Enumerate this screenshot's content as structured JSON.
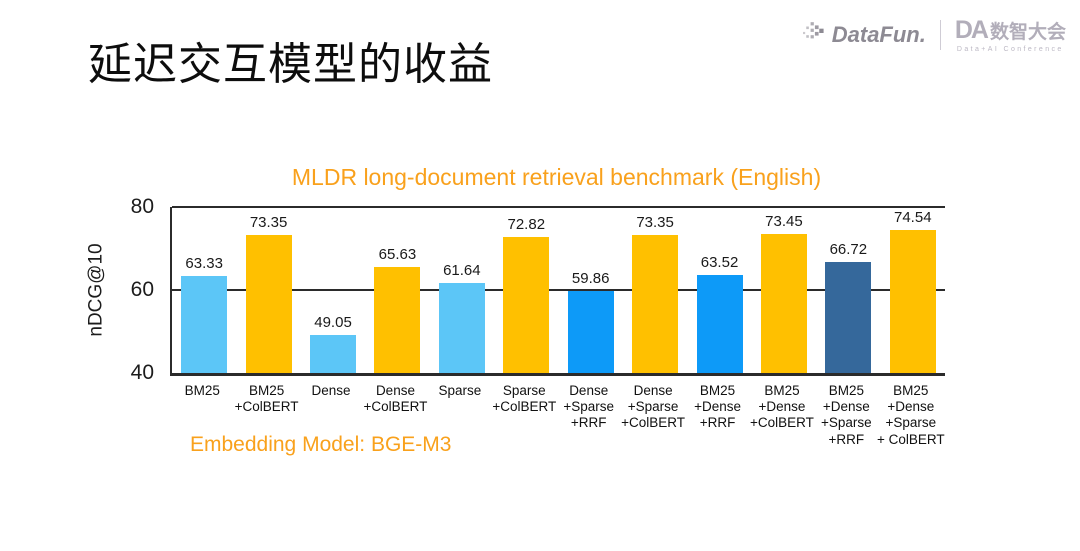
{
  "slide": {
    "title": "延迟交互模型的收益"
  },
  "branding": {
    "datafun": {
      "wordmark": "DataFun."
    },
    "conference": {
      "mark": "DA",
      "name_cn": "数智大会",
      "subtitle": "Data+AI Conference"
    }
  },
  "colors": {
    "accent_orange": "#f9a11c",
    "bar_light_blue": "#5CC6F7",
    "bar_amber": "#FFC000",
    "bar_azure": "#0D9AF8",
    "bar_steel_blue": "#35689B",
    "axis": "#2b2b2b",
    "logo_gray": "#8d8a93"
  },
  "chart_data": {
    "type": "bar",
    "title": "MLDR long-document retrieval benchmark (English)",
    "annotation": "Embedding Model: BGE-M3",
    "xlabel": "",
    "ylabel": "nDCG@10",
    "ylim": [
      40,
      80
    ],
    "yticks": [
      40,
      60,
      80
    ],
    "grid": "horizontal",
    "legend_position": "none",
    "categories": [
      "BM25",
      "BM25\n+ColBERT",
      "Dense",
      "Dense\n+ColBERT",
      "Sparse",
      "Sparse\n+ColBERT",
      "Dense\n+Sparse\n+RRF",
      "Dense\n+Sparse\n+ColBERT",
      "BM25\n+Dense\n+RRF",
      "BM25\n+Dense\n+ColBERT",
      "BM25\n+Dense\n+Sparse\n+RRF",
      "BM25\n+Dense\n+Sparse\n+ ColBERT"
    ],
    "values": [
      63.33,
      73.35,
      49.05,
      65.63,
      61.64,
      72.82,
      59.86,
      73.35,
      63.52,
      73.45,
      66.72,
      74.54
    ],
    "bar_colors": [
      "#5CC6F7",
      "#FFC000",
      "#5CC6F7",
      "#FFC000",
      "#5CC6F7",
      "#FFC000",
      "#0D9AF8",
      "#FFC000",
      "#0D9AF8",
      "#FFC000",
      "#35689B",
      "#FFC000"
    ]
  }
}
